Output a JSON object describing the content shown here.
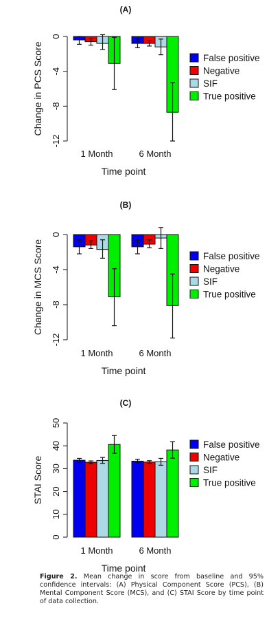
{
  "chart_data": [
    {
      "type": "bar",
      "title": "(A)",
      "xlabel": "Time point",
      "ylabel": "Change in PCS Score",
      "categories": [
        "1 Month",
        "6 Month"
      ],
      "ylim": [
        -12,
        0
      ],
      "yticks": [
        0,
        -4,
        -8,
        -12
      ],
      "legend_position": "right",
      "error_bars": "95% confidence interval",
      "series": [
        {
          "name": "False positive",
          "color": "#0000ee",
          "values": [
            -0.4,
            -0.8
          ],
          "lower": [
            -0.9,
            -1.3
          ],
          "upper": [
            0.0,
            -0.3
          ]
        },
        {
          "name": "Negative",
          "color": "#ee0000",
          "values": [
            -0.6,
            -0.8
          ],
          "lower": [
            -1.0,
            -1.1
          ],
          "upper": [
            -0.2,
            -0.5
          ]
        },
        {
          "name": "SIF",
          "color": "#add8e6",
          "values": [
            -0.8,
            -1.2
          ],
          "lower": [
            -1.5,
            -2.1
          ],
          "upper": [
            0.2,
            -0.3
          ]
        },
        {
          "name": "True positive",
          "color": "#00ee00",
          "values": [
            -3.1,
            -8.7
          ],
          "lower": [
            -6.1,
            -12.0
          ],
          "upper": [
            -0.1,
            -5.3
          ]
        }
      ]
    },
    {
      "type": "bar",
      "title": "(B)",
      "xlabel": "Time point",
      "ylabel": "Change in MCS Score",
      "categories": [
        "1 Month",
        "6 Month"
      ],
      "ylim": [
        -12,
        0
      ],
      "yticks": [
        0,
        -4,
        -8,
        -12
      ],
      "legend_position": "right",
      "error_bars": "95% confidence interval",
      "series": [
        {
          "name": "False positive",
          "color": "#0000ee",
          "values": [
            -1.4,
            -1.4
          ],
          "lower": [
            -2.2,
            -2.2
          ],
          "upper": [
            -0.6,
            -0.6
          ]
        },
        {
          "name": "Negative",
          "color": "#ee0000",
          "values": [
            -1.2,
            -1.1
          ],
          "lower": [
            -1.6,
            -1.5
          ],
          "upper": [
            -0.7,
            -0.6
          ]
        },
        {
          "name": "SIF",
          "color": "#add8e6",
          "values": [
            -1.7,
            -0.4
          ],
          "lower": [
            -2.7,
            -1.6
          ],
          "upper": [
            -0.6,
            0.8
          ]
        },
        {
          "name": "True positive",
          "color": "#00ee00",
          "values": [
            -7.1,
            -8.1
          ],
          "lower": [
            -10.4,
            -11.8
          ],
          "upper": [
            -3.9,
            -4.5
          ]
        }
      ]
    },
    {
      "type": "bar",
      "title": "(C)",
      "xlabel": "Time point",
      "ylabel": "STAI Score",
      "categories": [
        "1 Month",
        "6 Month"
      ],
      "ylim": [
        0,
        50
      ],
      "yticks": [
        0,
        10,
        20,
        30,
        40,
        50
      ],
      "legend_position": "right",
      "error_bars": "95% confidence interval",
      "series": [
        {
          "name": "False positive",
          "color": "#0000ee",
          "values": [
            33.7,
            33.3
          ],
          "lower": [
            32.9,
            32.5
          ],
          "upper": [
            34.5,
            34.1
          ]
        },
        {
          "name": "Negative",
          "color": "#ee0000",
          "values": [
            32.8,
            32.9
          ],
          "lower": [
            32.2,
            32.3
          ],
          "upper": [
            33.4,
            33.5
          ]
        },
        {
          "name": "SIF",
          "color": "#add8e6",
          "values": [
            33.6,
            33.0
          ],
          "lower": [
            32.3,
            31.5
          ],
          "upper": [
            34.9,
            34.5
          ]
        },
        {
          "name": "True positive",
          "color": "#00ee00",
          "values": [
            40.6,
            38.2
          ],
          "lower": [
            36.7,
            34.6
          ],
          "upper": [
            44.5,
            41.8
          ]
        }
      ]
    }
  ],
  "caption": {
    "label": "Figure 2.",
    "text": "Mean change in score from baseline and 95% confidence intervals: (A) Physical Component Score (PCS), (B) Mental Component Score (MCS), and (C) STAI Score by time point of data collection."
  }
}
